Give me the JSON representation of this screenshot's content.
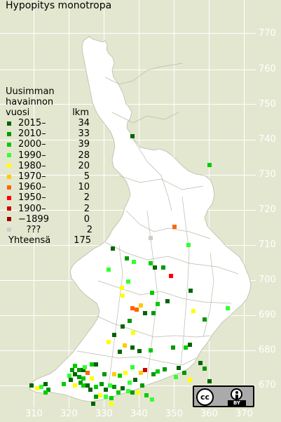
{
  "title": "Hypopitys monotropa",
  "legend": {
    "header_line1": "Uusimman",
    "header_line2": "havainnon",
    "header_col1": "vuosi",
    "header_col2": "lkm",
    "rows": [
      {
        "label": "2015–",
        "count": "34",
        "color": "#006400"
      },
      {
        "label": "2010–",
        "count": "33",
        "color": "#009900"
      },
      {
        "label": "2000–",
        "count": "39",
        "color": "#00cc00"
      },
      {
        "label": "1990–",
        "count": "28",
        "color": "#33ff33"
      },
      {
        "label": "1980–",
        "count": "20",
        "color": "#ffff00"
      },
      {
        "label": "1970–",
        "count": "5",
        "color": "#ffcc00"
      },
      {
        "label": "1960–",
        "count": "10",
        "color": "#ff6600"
      },
      {
        "label": "1950–",
        "count": "2",
        "color": "#ff0000"
      },
      {
        "label": "1900–",
        "count": "2",
        "color": "#cc0000"
      },
      {
        "label": "−1899",
        "count": "0",
        "color": "#990000"
      },
      {
        "label": "???",
        "count": "2",
        "color": "#cccccc"
      }
    ],
    "total_label": "Yhteensä",
    "total_count": "175"
  },
  "y_ticks": [
    "770",
    "760",
    "750",
    "740",
    "730",
    "720",
    "710",
    "700",
    "690",
    "680",
    "670"
  ],
  "x_ticks": [
    "310",
    "320",
    "330",
    "340",
    "350",
    "360",
    "370"
  ],
  "license": {
    "cc": "cc",
    "by": "BY"
  }
}
